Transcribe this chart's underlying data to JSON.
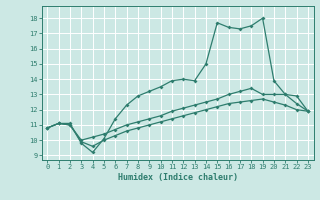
{
  "xlabel": "Humidex (Indice chaleur)",
  "background_color": "#cce8e4",
  "grid_color": "#ffffff",
  "line_color": "#2e7d6e",
  "xlim": [
    -0.5,
    23.5
  ],
  "ylim": [
    8.7,
    18.8
  ],
  "yticks": [
    9,
    10,
    11,
    12,
    13,
    14,
    15,
    16,
    17,
    18
  ],
  "xticks": [
    0,
    1,
    2,
    3,
    4,
    5,
    6,
    7,
    8,
    9,
    10,
    11,
    12,
    13,
    14,
    15,
    16,
    17,
    18,
    19,
    20,
    21,
    22,
    23
  ],
  "curve1_x": [
    0,
    1,
    2,
    3,
    4,
    5,
    6,
    7,
    8,
    9,
    10,
    11,
    12,
    13,
    14,
    15,
    16,
    17,
    18,
    19,
    20,
    21,
    22,
    23
  ],
  "curve1_y": [
    10.8,
    11.1,
    11.1,
    9.8,
    9.2,
    10.1,
    11.4,
    12.3,
    12.9,
    13.2,
    13.5,
    13.9,
    14.0,
    13.9,
    15.0,
    17.7,
    17.4,
    17.3,
    17.5,
    18.0,
    13.9,
    13.0,
    12.9,
    11.9
  ],
  "curve2_x": [
    0,
    1,
    2,
    3,
    4,
    5,
    6,
    7,
    8,
    9,
    10,
    11,
    12,
    13,
    14,
    15,
    16,
    17,
    18,
    19,
    20,
    21,
    22,
    23
  ],
  "curve2_y": [
    10.8,
    11.1,
    11.0,
    10.0,
    10.2,
    10.4,
    10.7,
    11.0,
    11.2,
    11.4,
    11.6,
    11.9,
    12.1,
    12.3,
    12.5,
    12.7,
    13.0,
    13.2,
    13.4,
    13.0,
    13.0,
    13.0,
    12.4,
    11.9
  ],
  "curve3_x": [
    0,
    1,
    2,
    3,
    4,
    5,
    6,
    7,
    8,
    9,
    10,
    11,
    12,
    13,
    14,
    15,
    16,
    17,
    18,
    19,
    20,
    21,
    22,
    23
  ],
  "curve3_y": [
    10.8,
    11.1,
    11.0,
    9.9,
    9.6,
    10.0,
    10.3,
    10.6,
    10.8,
    11.0,
    11.2,
    11.4,
    11.6,
    11.8,
    12.0,
    12.2,
    12.4,
    12.5,
    12.6,
    12.7,
    12.5,
    12.3,
    12.0,
    11.9
  ]
}
